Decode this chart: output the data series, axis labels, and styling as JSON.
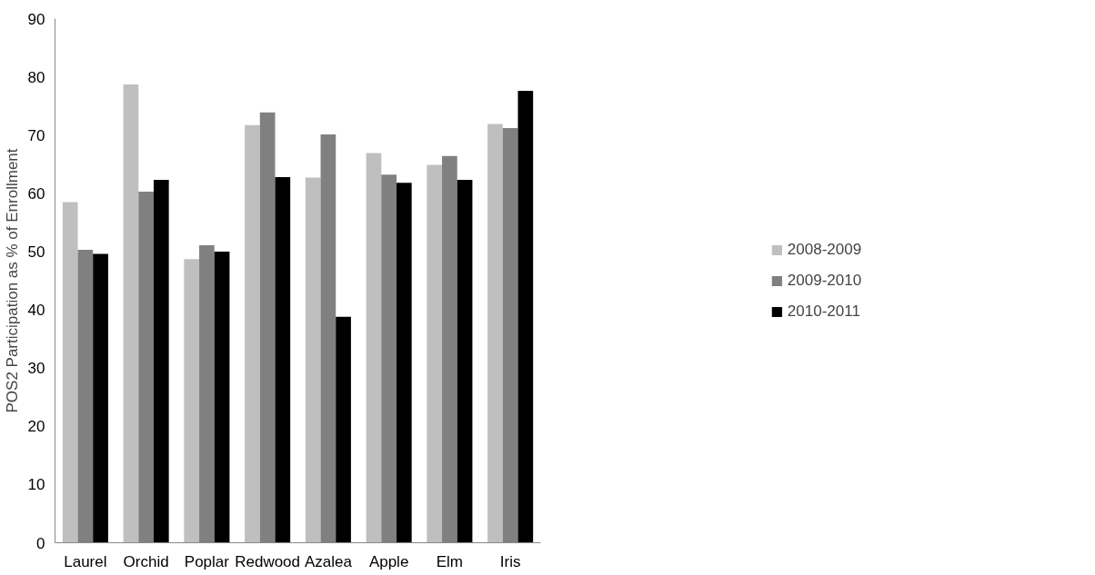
{
  "chart_data": {
    "type": "bar",
    "ylabel": "POS2 Participation as % of Enrollment",
    "categories": [
      "Laurel",
      "Orchid",
      "Poplar",
      "Redwood",
      "Azalea",
      "Apple",
      "Elm",
      "Iris"
    ],
    "series": [
      {
        "name": "2008-2009",
        "color": "#bfbfbf",
        "values": [
          58.5,
          78.7,
          48.7,
          71.7,
          62.7,
          66.9,
          64.9,
          71.9
        ]
      },
      {
        "name": "2009-2010",
        "color": "#808080",
        "values": [
          50.3,
          60.3,
          51.1,
          73.9,
          70.1,
          63.2,
          66.4,
          71.2
        ]
      },
      {
        "name": "2010-2011",
        "color": "#000000",
        "values": [
          49.6,
          62.3,
          50.0,
          62.8,
          38.8,
          61.8,
          62.3,
          77.6
        ]
      }
    ],
    "ylim": [
      0,
      90
    ],
    "yticks": [
      0,
      10,
      20,
      30,
      40,
      50,
      60,
      70,
      80,
      90
    ],
    "grid": false,
    "legend": "right"
  }
}
